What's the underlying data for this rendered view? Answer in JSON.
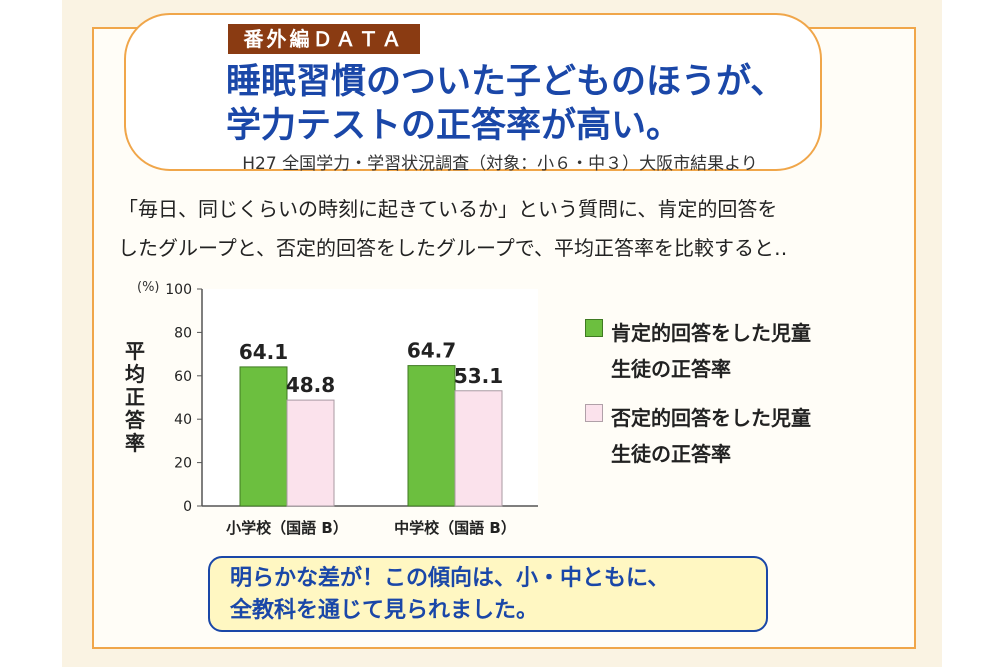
{
  "header": {
    "badge": "番外編ＤＡＴＡ",
    "headline_line1": "睡眠習慣のついた子どものほうが、",
    "headline_line2": "学力テストの正答率が高い。",
    "source": "H27 全国学力・学習状況調査（対象：小６・中３）大阪市結果より"
  },
  "intro": {
    "line1": "「毎日、同じくらいの時刻に起きているか」という質問に、肯定的回答を",
    "line2": "したグループと、否定的回答をしたグループで、平均正答率を比較すると‥"
  },
  "chart_data": {
    "type": "bar",
    "unit_label": "(%)",
    "ylabel": "平均正答率",
    "ylim": [
      0,
      100
    ],
    "yticks": [
      0,
      20,
      40,
      60,
      80,
      100
    ],
    "categories": [
      "小学校（国語 B）",
      "中学校（国語 B）"
    ],
    "series": [
      {
        "name": "肯定的回答をした児童生徒の正答率",
        "values": [
          64.1,
          64.7
        ],
        "color": "#6cbf3f"
      },
      {
        "name": "否定的回答をした児童生徒の正答率",
        "values": [
          48.8,
          53.1
        ],
        "color": "#fbe2ec"
      }
    ],
    "data_labels": [
      [
        "64.1",
        "64.7"
      ],
      [
        "48.8",
        "53.1"
      ]
    ],
    "legend_position": "right"
  },
  "legend": {
    "item1_line1": "肯定的回答をした児童",
    "item1_line2": "生徒の正答率",
    "item2_line1": "否定的回答をした児童",
    "item2_line2": "生徒の正答率"
  },
  "conclusion": {
    "line1": "明らかな差が！この傾向は、小・中ともに、",
    "line2": "全教科を通じて見られました。"
  },
  "colors": {
    "accent_orange": "#f0a64a",
    "headline_blue": "#1a47a8",
    "badge_brown": "#8a3b12",
    "note_yellow": "#fff7c2"
  }
}
